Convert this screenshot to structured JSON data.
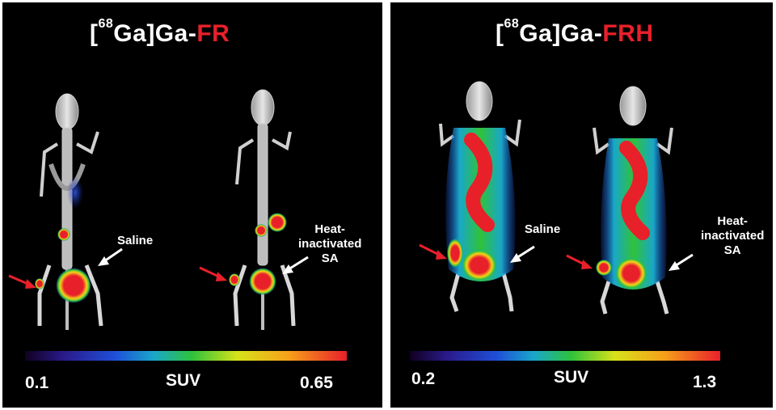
{
  "panels": [
    {
      "title_pre": "[",
      "title_sup": "68",
      "title_mid": "Ga]Ga-",
      "title_red": "FR",
      "mice": [
        {
          "label_lines": [
            "Saline"
          ]
        },
        {
          "label_lines": [
            "Heat-",
            "inactivated",
            "SA"
          ]
        }
      ],
      "scale": {
        "min": "0.1",
        "label": "SUV",
        "max": "0.65"
      }
    },
    {
      "title_pre": "[",
      "title_sup": "68",
      "title_mid": "Ga]Ga-",
      "title_red": "FRH",
      "mice": [
        {
          "label_lines": [
            "Saline"
          ]
        },
        {
          "label_lines": [
            "Heat-",
            "inactivated",
            "SA"
          ]
        }
      ],
      "scale": {
        "min": "0.2",
        "label": "SUV",
        "max": "1.3"
      }
    }
  ],
  "colors": {
    "accent_red": "#e8202a",
    "arrow_white": "#ffffff",
    "background": "#000000"
  },
  "colormap": [
    "#1a0033",
    "#2a1a8a",
    "#1f4fd8",
    "#19a7c9",
    "#2fc23a",
    "#d7e21a",
    "#f6a01a",
    "#e8202a"
  ]
}
